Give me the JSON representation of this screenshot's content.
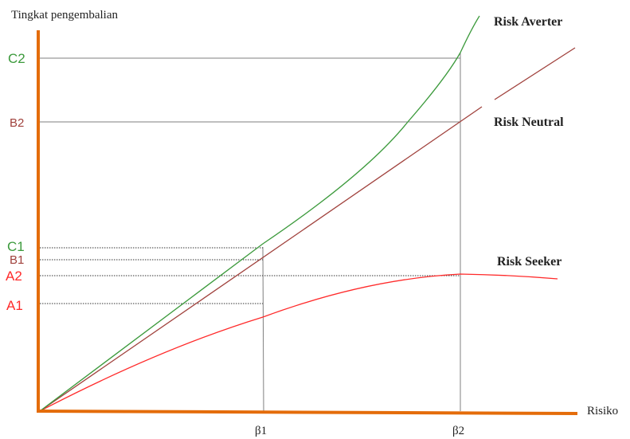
{
  "axes": {
    "y_label": "Tingkat pengembalian",
    "x_label": "Risiko",
    "color": "#E46C0A"
  },
  "curves": [
    {
      "id": "averter",
      "label": "Risk Averter",
      "color": "#3C9A3C"
    },
    {
      "id": "neutral",
      "label": "Risk Neutral",
      "color": "#A0413C"
    },
    {
      "id": "seeker",
      "label": "Risk Seeker",
      "color": "#FF2A2A"
    }
  ],
  "y_ticks": [
    {
      "id": "c2",
      "label": "C2",
      "color": "#3C9A3C"
    },
    {
      "id": "b2",
      "label": "B2",
      "color": "#A0413C"
    },
    {
      "id": "c1",
      "label": "C1",
      "color": "#3C9A3C"
    },
    {
      "id": "b1",
      "label": "B1",
      "color": "#A0413C"
    },
    {
      "id": "a2",
      "label": "A2",
      "color": "#FF2A2A"
    },
    {
      "id": "a1",
      "label": "A1",
      "color": "#FF2A2A"
    }
  ],
  "x_ticks": [
    {
      "id": "beta1",
      "label": "β1"
    },
    {
      "id": "beta2",
      "label": "β2"
    }
  ]
}
